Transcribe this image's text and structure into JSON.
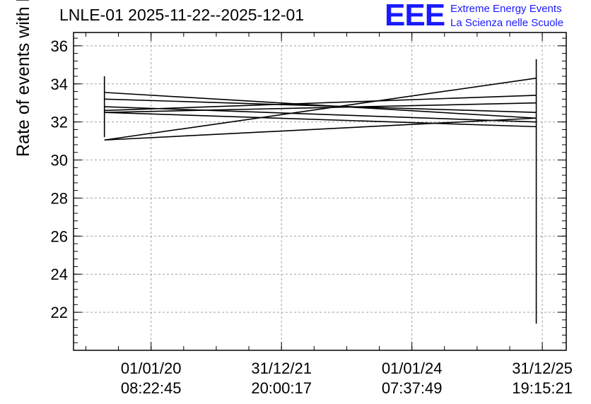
{
  "header": {
    "title": "LNLE-01 2025-11-22--2025-12-01",
    "logo_text": "EEE",
    "logo_line1": "Extreme Energy Events",
    "logo_line2": "La Scienza nelle Scuole"
  },
  "colors": {
    "logo": "#1a1aff",
    "lines": "#000000",
    "grid": "#a0a0a0"
  },
  "chart_data": {
    "type": "line",
    "title": "LNLE-01 2025-11-22--2025-12-01",
    "xlabel": "",
    "ylabel": "Rate of events with hits [Hz]",
    "ylim": [
      20,
      36.7
    ],
    "yticks": [
      22,
      24,
      26,
      28,
      30,
      32,
      34,
      36
    ],
    "xlim": [
      "2018-10-24",
      "2026-05-15"
    ],
    "xtick_labels": [
      {
        "date": "2020-01-01T08:22:45",
        "line1": "01/01/20",
        "line2": "08:22:45"
      },
      {
        "date": "2021-12-31T20:00:17",
        "line1": "31/12/21",
        "line2": "20:00:17"
      },
      {
        "date": "2024-01-01T07:37:49",
        "line1": "01/01/24",
        "line2": "07:37:49"
      },
      {
        "date": "2025-12-31T19:15:21",
        "line1": "31/12/25",
        "line2": "19:15:21"
      }
    ],
    "grid": true,
    "segments": [
      {
        "x": [
          "2019-04-15",
          "2025-11-28"
        ],
        "y": [
          33.55,
          32.2
        ]
      },
      {
        "x": [
          "2019-04-15",
          "2025-11-28"
        ],
        "y": [
          33.2,
          32.5
        ]
      },
      {
        "x": [
          "2019-04-15",
          "2025-11-28"
        ],
        "y": [
          32.8,
          32.0
        ]
      },
      {
        "x": [
          "2019-04-15",
          "2025-11-28"
        ],
        "y": [
          32.6,
          33.4
        ]
      },
      {
        "x": [
          "2019-04-15",
          "2025-11-28"
        ],
        "y": [
          32.5,
          33.0
        ]
      },
      {
        "x": [
          "2019-04-15",
          "2025-11-28"
        ],
        "y": [
          32.5,
          31.75
        ]
      },
      {
        "x": [
          "2019-04-15",
          "2025-11-28"
        ],
        "y": [
          31.05,
          32.2
        ]
      },
      {
        "x": [
          "2019-04-15",
          "2025-11-28"
        ],
        "y": [
          31.05,
          34.3
        ]
      }
    ],
    "error_bars": [
      {
        "x": "2019-04-15",
        "low": 31.2,
        "high": 34.4
      },
      {
        "x": "2025-11-28",
        "low": 21.4,
        "high": 35.3
      }
    ]
  }
}
